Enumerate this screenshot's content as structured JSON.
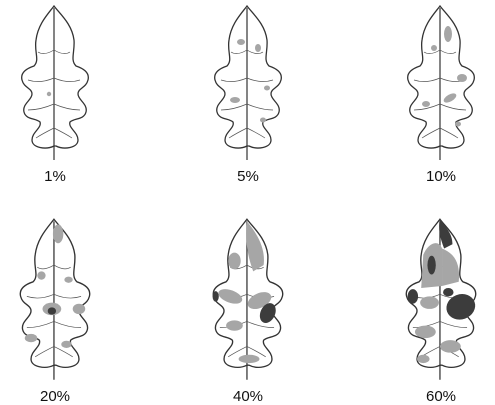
{
  "severity_scale": {
    "panels": [
      {
        "label": "1%",
        "severity": 1
      },
      {
        "label": "5%",
        "severity": 5
      },
      {
        "label": "10%",
        "severity": 10
      },
      {
        "label": "20%",
        "severity": 20
      },
      {
        "label": "40%",
        "severity": 40
      },
      {
        "label": "60%",
        "severity": 60
      }
    ],
    "colors": {
      "leaf_fill": "#ffffff",
      "outline": "#333333",
      "lesion_light": "#a6a6a6",
      "lesion_dark": "#3c3c3c"
    }
  }
}
